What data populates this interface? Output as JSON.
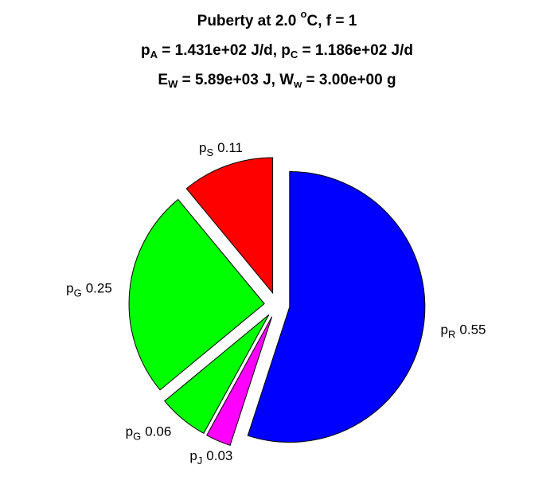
{
  "chart_data": {
    "type": "pie",
    "title": [
      [
        {
          "text": "Puberty at 2.0 "
        },
        {
          "sup": "o"
        },
        {
          "text": "C, f = 1"
        }
      ],
      [
        {
          "text": "p"
        },
        {
          "sub": "A"
        },
        {
          "text": " = 1.431e+02 J/d,  p"
        },
        {
          "sub": "C"
        },
        {
          "text": " = 1.186e+02 J/d"
        }
      ],
      [
        {
          "text": "E"
        },
        {
          "sub": "W"
        },
        {
          "text": " = 5.89e+03 J, W"
        },
        {
          "sub": "w"
        },
        {
          "text": " = 3.00e+00 g"
        }
      ]
    ],
    "categories": [
      [
        {
          "text": "p"
        },
        {
          "sub": "R"
        }
      ],
      [
        {
          "text": "p"
        },
        {
          "sub": "J"
        }
      ],
      [
        {
          "text": "p"
        },
        {
          "sub": "G"
        }
      ],
      [
        {
          "text": "p"
        },
        {
          "sub": "G"
        }
      ],
      [
        {
          "text": "p"
        },
        {
          "sub": "S"
        }
      ]
    ],
    "values": [
      0.55,
      0.03,
      0.06,
      0.25,
      0.11
    ],
    "colors": [
      "#0000ff",
      "#ff00ff",
      "#00ff00",
      "#00ff00",
      "#ff0000"
    ],
    "explode": true
  }
}
